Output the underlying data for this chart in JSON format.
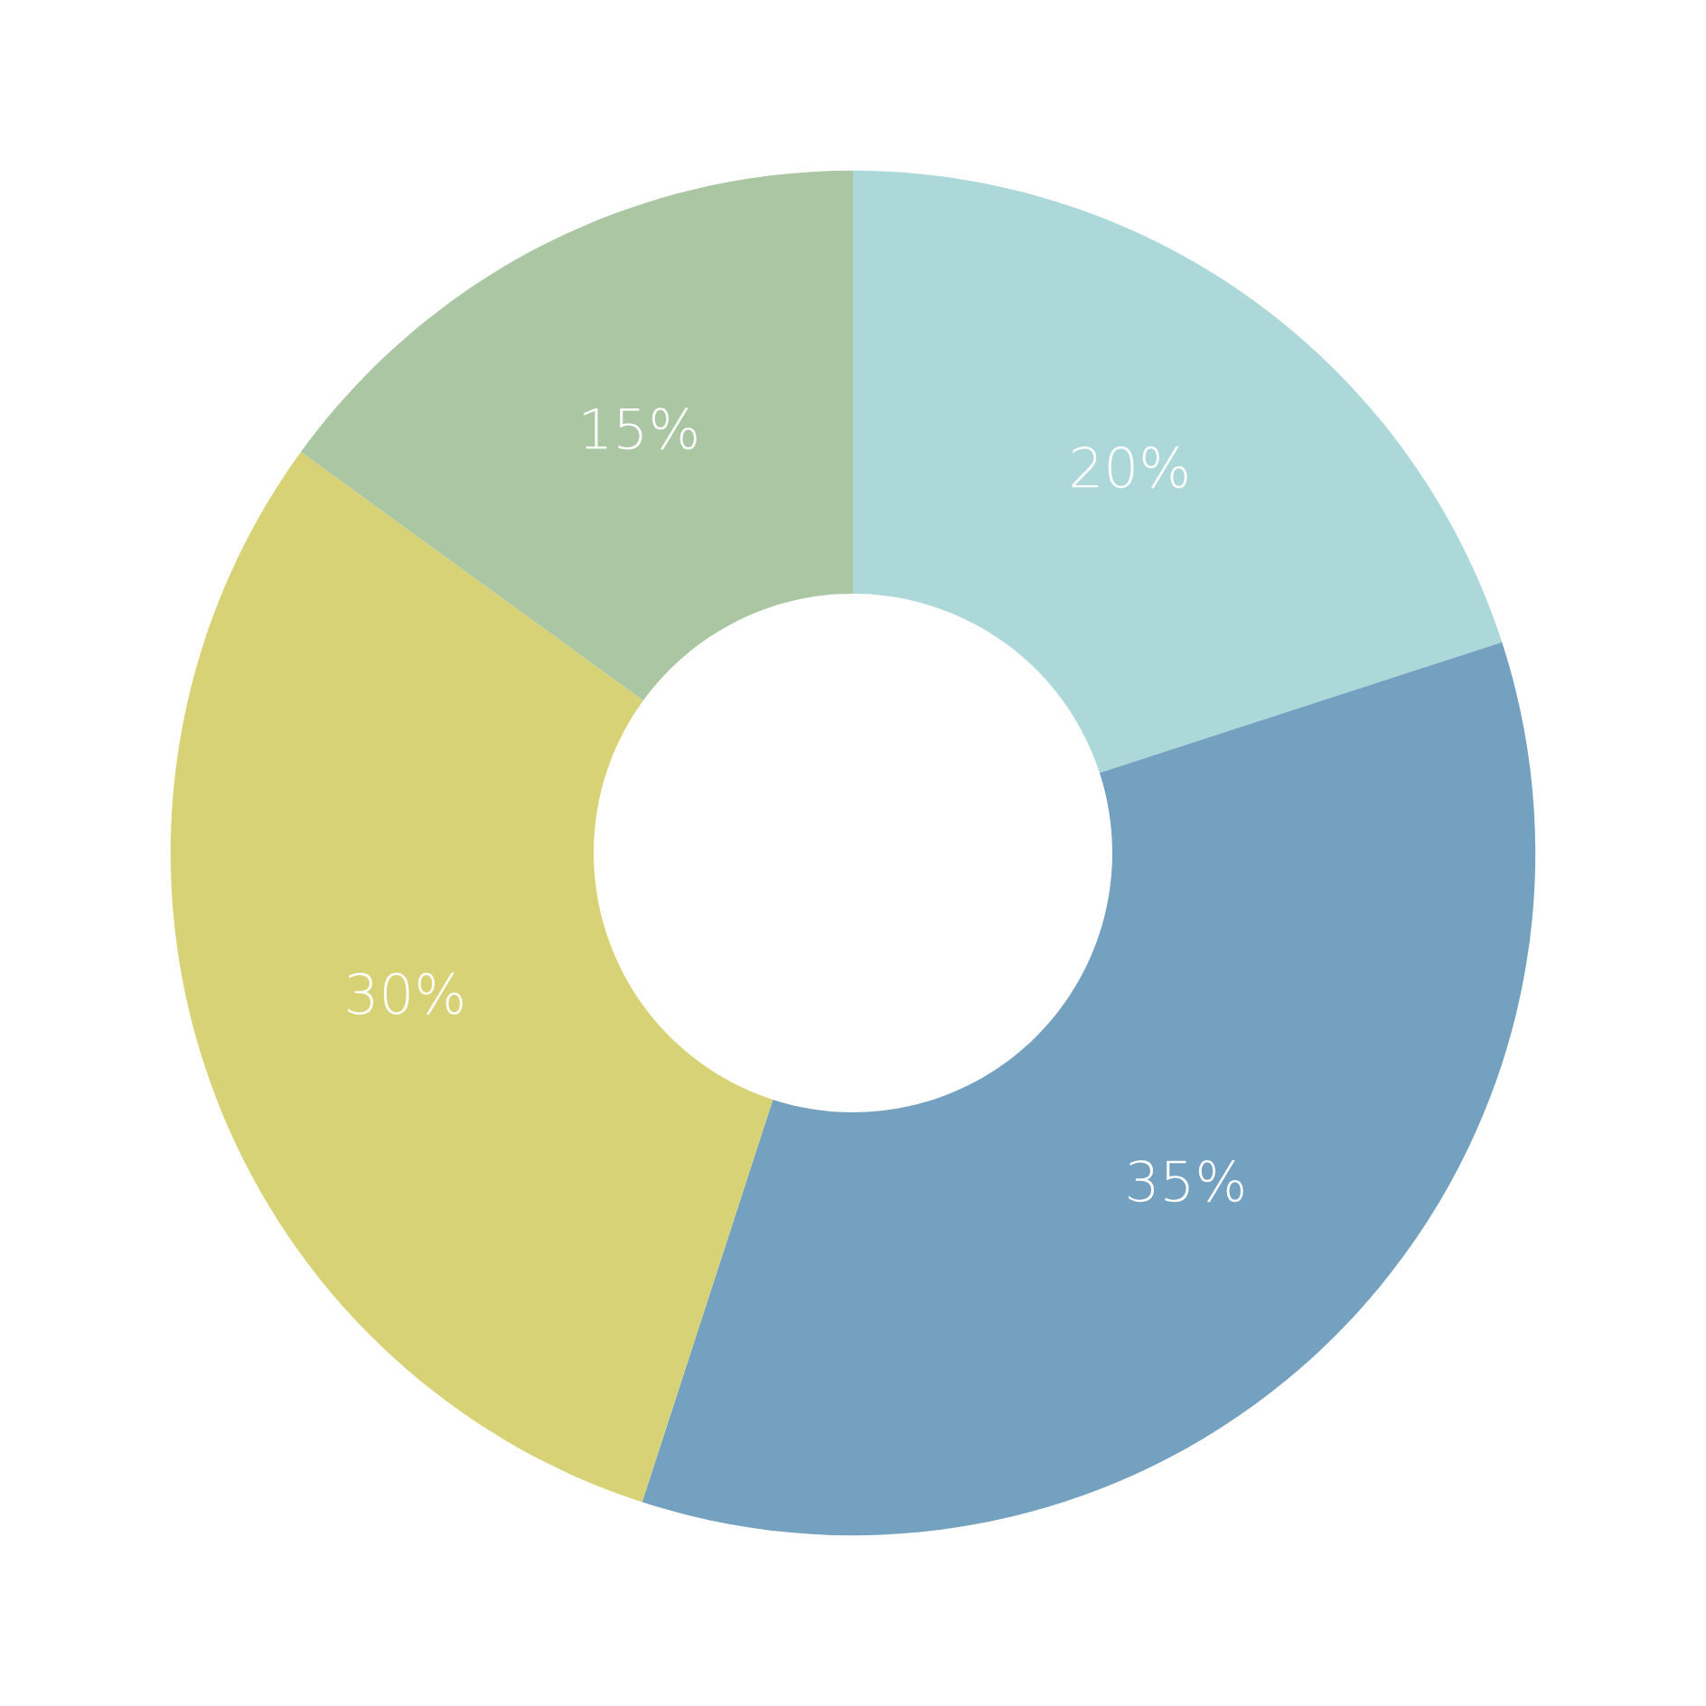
{
  "chart_data": {
    "type": "donut",
    "categories": [
      null,
      null,
      null,
      null
    ],
    "values": [
      20,
      35,
      30,
      15
    ],
    "colors": [
      "#acd8da",
      "#74a1c0",
      "#d8d276",
      "#aac6a2"
    ],
    "value_labels": [
      "20%",
      "35%",
      "30%",
      "15%"
    ],
    "legend": false
  }
}
